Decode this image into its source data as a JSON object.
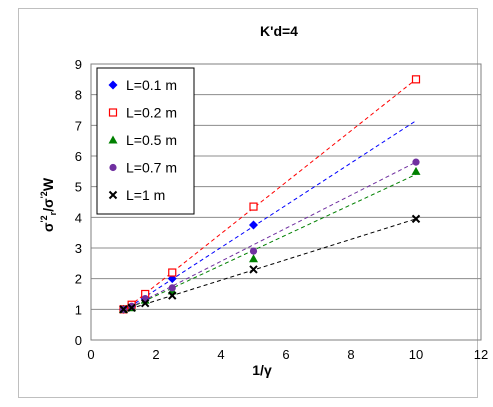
{
  "chart_data": {
    "type": "scatter",
    "title": "K'd=4",
    "xlabel": "1/γ",
    "ylabel": {
      "main": "σ",
      "sup1": "'2",
      "sub1": "r",
      "mid": "/σ",
      "sup2": "'2",
      "end": "W"
    },
    "xlim": [
      0,
      12
    ],
    "ylim": [
      0,
      9
    ],
    "xticks": [
      "0",
      "2",
      "4",
      "6",
      "8",
      "10",
      "12"
    ],
    "yticks": [
      "0",
      "1",
      "2",
      "3",
      "4",
      "5",
      "6",
      "7",
      "8",
      "9"
    ],
    "grid": true,
    "legend_position": "top-left",
    "series": [
      {
        "name": "L=0.1 m",
        "marker": "diamond",
        "color": "#0000ff",
        "x": [
          1,
          1.25,
          1.667,
          2.5,
          5
        ],
        "y": [
          1.0,
          1.1,
          1.35,
          2.0,
          3.75
        ],
        "trendline": [
          [
            1,
            0.95
          ],
          [
            10,
            7.15
          ]
        ]
      },
      {
        "name": "L=0.2 m",
        "marker": "square-open",
        "color": "#ff0000",
        "x": [
          1,
          1.25,
          1.667,
          2.5,
          5,
          10
        ],
        "y": [
          1.0,
          1.15,
          1.5,
          2.2,
          4.35,
          8.5
        ],
        "trendline": [
          [
            1,
            0.95
          ],
          [
            10,
            8.5
          ]
        ]
      },
      {
        "name": "L=0.5 m",
        "marker": "triangle",
        "color": "#008000",
        "x": [
          1,
          1.25,
          1.667,
          2.5,
          5,
          10
        ],
        "y": [
          1.0,
          1.05,
          1.3,
          1.6,
          2.65,
          5.5
        ],
        "trendline": [
          [
            1,
            0.95
          ],
          [
            10,
            5.4
          ]
        ]
      },
      {
        "name": "L=0.7 m",
        "marker": "circle",
        "color": "#7030a0",
        "x": [
          1,
          1.25,
          1.667,
          2.5,
          5,
          10
        ],
        "y": [
          1.0,
          1.1,
          1.35,
          1.7,
          2.9,
          5.8
        ],
        "trendline": [
          [
            1,
            0.95
          ],
          [
            10,
            5.8
          ]
        ]
      },
      {
        "name": "L=1 m",
        "marker": "x",
        "color": "#000000",
        "x": [
          1,
          1.25,
          1.667,
          2.5,
          5,
          10
        ],
        "y": [
          1.0,
          1.05,
          1.2,
          1.45,
          2.3,
          3.95
        ],
        "trendline": [
          [
            1,
            0.95
          ],
          [
            10,
            3.95
          ]
        ]
      }
    ]
  }
}
